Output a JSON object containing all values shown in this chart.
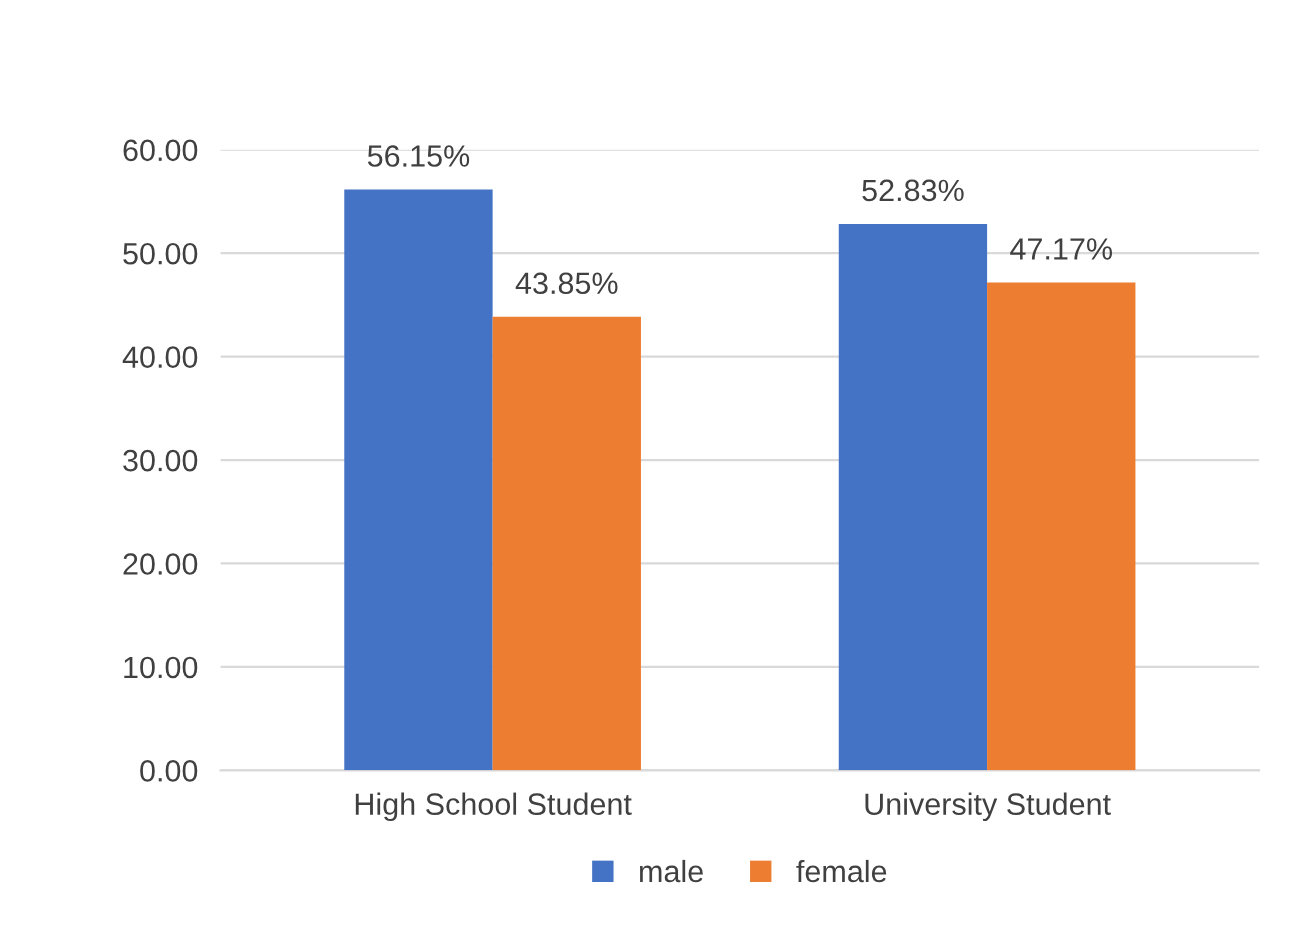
{
  "chart_data": {
    "type": "bar",
    "categories": [
      "High School Student",
      "University Student"
    ],
    "series": [
      {
        "name": "male",
        "color": "#4472c4",
        "values": [
          56.15,
          52.83
        ],
        "value_labels": [
          "56.15%",
          "52.83%"
        ]
      },
      {
        "name": "female",
        "color": "#ed7d31",
        "values": [
          43.85,
          47.17
        ],
        "value_labels": [
          "43.85%",
          "47.17%"
        ]
      }
    ],
    "ylim": [
      0,
      60
    ],
    "yticks": [
      {
        "value": 0,
        "label": "0.00"
      },
      {
        "value": 10,
        "label": "10.00"
      },
      {
        "value": 20,
        "label": "20.00"
      },
      {
        "value": 30,
        "label": "30.00"
      },
      {
        "value": 40,
        "label": "40.00"
      },
      {
        "value": 50,
        "label": "50.00"
      },
      {
        "value": 60,
        "label": "60.00"
      }
    ],
    "grid": "y",
    "legend": "bottom"
  }
}
